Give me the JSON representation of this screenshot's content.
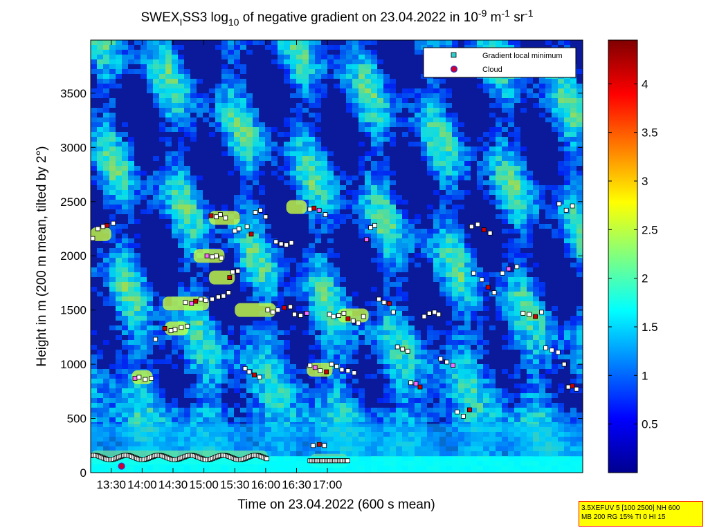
{
  "chart_data": {
    "type": "heatmap",
    "title": {
      "parts": [
        {
          "text": "SWEX"
        },
        {
          "text": "I",
          "sub": true
        },
        {
          "text": "SS3 log"
        },
        {
          "text": "10",
          "sub": true
        },
        {
          "text": " of negative gradient on 23.04.2022 in 10"
        },
        {
          "text": "-9",
          "sup": true
        },
        {
          "text": " m"
        },
        {
          "text": "-1",
          "sup": true
        },
        {
          "text": " sr"
        },
        {
          "text": "-1",
          "sup": true
        }
      ]
    },
    "xlabel": "Time on 23.04.2022 (600 s mean)",
    "ylabel": "Height in m (200 m mean, tilted by 2°)",
    "x_range_min": [
      790,
      1268
    ],
    "x_ticks": [
      {
        "label": "13:30",
        "value": 810
      },
      {
        "label": "14:00",
        "value": 840
      },
      {
        "label": "14:30",
        "value": 870
      },
      {
        "label": "15:00",
        "value": 900
      },
      {
        "label": "15:30",
        "value": 930
      },
      {
        "label": "16:00",
        "value": 960
      },
      {
        "label": "16:30",
        "value": 990
      },
      {
        "label": "17:00",
        "value": 1020
      }
    ],
    "y_range": [
      0,
      3990
    ],
    "y_ticks": [
      0,
      500,
      1000,
      1500,
      2000,
      2500,
      3000,
      3500
    ],
    "colorbar": {
      "range": [
        0,
        4.45
      ],
      "ticks": [
        "0.5",
        "1",
        "1.5",
        "2",
        "2.5",
        "3",
        "3.5",
        "4"
      ],
      "colormap": "jet"
    },
    "legend": {
      "position": "top-right",
      "entries": [
        {
          "label": "Gradient local minimum",
          "marker": "square",
          "color": "#33cccc"
        },
        {
          "label": "Cloud",
          "marker": "circle",
          "color": "#cc0033"
        }
      ]
    },
    "bands": [
      {
        "height_m": 140,
        "start_min": 790,
        "end_min": 962
      },
      {
        "height_m": 880,
        "start_min": 830,
        "end_min": 850
      },
      {
        "height_m": 1330,
        "start_min": 862,
        "end_min": 885
      },
      {
        "height_m": 1560,
        "start_min": 860,
        "end_min": 905
      },
      {
        "height_m": 1500,
        "start_min": 930,
        "end_min": 970
      },
      {
        "height_m": 1800,
        "start_min": 905,
        "end_min": 930
      },
      {
        "height_m": 2000,
        "start_min": 890,
        "end_min": 920
      },
      {
        "height_m": 2200,
        "start_min": 790,
        "end_min": 810
      },
      {
        "height_m": 2350,
        "start_min": 905,
        "end_min": 935
      },
      {
        "height_m": 2450,
        "start_min": 980,
        "end_min": 1000
      },
      {
        "height_m": 1450,
        "start_min": 1030,
        "end_min": 1060
      },
      {
        "height_m": 950,
        "start_min": 1000,
        "end_min": 1025
      },
      {
        "height_m": 110,
        "start_min": 1003,
        "end_min": 1040
      }
    ],
    "minima_points": [
      [
        792,
        2160
      ],
      [
        797,
        2250
      ],
      [
        802,
        2270
      ],
      [
        806,
        2280
      ],
      [
        812,
        2300
      ],
      [
        833,
        870
      ],
      [
        837,
        880
      ],
      [
        843,
        860
      ],
      [
        849,
        870
      ],
      [
        853,
        1230
      ],
      [
        862,
        1330
      ],
      [
        868,
        1310
      ],
      [
        872,
        1320
      ],
      [
        878,
        1340
      ],
      [
        884,
        1350
      ],
      [
        882,
        1570
      ],
      [
        888,
        1560
      ],
      [
        892,
        1580
      ],
      [
        897,
        1600
      ],
      [
        902,
        1590
      ],
      [
        908,
        1600
      ],
      [
        914,
        1620
      ],
      [
        919,
        1630
      ],
      [
        924,
        1660
      ],
      [
        925,
        1800
      ],
      [
        928,
        1850
      ],
      [
        933,
        1860
      ],
      [
        903,
        2000
      ],
      [
        908,
        1990
      ],
      [
        912,
        2000
      ],
      [
        917,
        1980
      ],
      [
        907,
        2370
      ],
      [
        912,
        2360
      ],
      [
        916,
        2380
      ],
      [
        921,
        2350
      ],
      [
        930,
        2230
      ],
      [
        934,
        2250
      ],
      [
        942,
        2270
      ],
      [
        946,
        2200
      ],
      [
        950,
        2400
      ],
      [
        955,
        2420
      ],
      [
        960,
        2360
      ],
      [
        962,
        1500
      ],
      [
        967,
        1480
      ],
      [
        972,
        1500
      ],
      [
        978,
        1520
      ],
      [
        984,
        1530
      ],
      [
        988,
        1460
      ],
      [
        994,
        1450
      ],
      [
        1000,
        1470
      ],
      [
        940,
        960
      ],
      [
        944,
        930
      ],
      [
        949,
        900
      ],
      [
        954,
        880
      ],
      [
        970,
        2130
      ],
      [
        975,
        2110
      ],
      [
        980,
        2100
      ],
      [
        985,
        2120
      ],
      [
        1003,
        2430
      ],
      [
        1007,
        2440
      ],
      [
        1012,
        2420
      ],
      [
        1018,
        2380
      ],
      [
        1022,
        1460
      ],
      [
        1026,
        1440
      ],
      [
        1031,
        1450
      ],
      [
        1036,
        1470
      ],
      [
        1040,
        1420
      ],
      [
        1045,
        1400
      ],
      [
        1050,
        1380
      ],
      [
        1055,
        1440
      ],
      [
        1003,
        990
      ],
      [
        1008,
        970
      ],
      [
        1013,
        940
      ],
      [
        1019,
        930
      ],
      [
        1024,
        1000
      ],
      [
        1029,
        980
      ],
      [
        1034,
        950
      ],
      [
        1040,
        940
      ],
      [
        1046,
        920
      ],
      [
        1006,
        250
      ],
      [
        1012,
        260
      ],
      [
        1017,
        250
      ],
      [
        1058,
        2150
      ],
      [
        1062,
        2260
      ],
      [
        1066,
        2280
      ],
      [
        1070,
        1600
      ],
      [
        1075,
        1570
      ],
      [
        1080,
        1560
      ],
      [
        1084,
        1480
      ],
      [
        1088,
        1160
      ],
      [
        1093,
        1140
      ],
      [
        1098,
        1120
      ],
      [
        1101,
        830
      ],
      [
        1106,
        820
      ],
      [
        1110,
        790
      ],
      [
        1114,
        1440
      ],
      [
        1119,
        1470
      ],
      [
        1124,
        1480
      ],
      [
        1128,
        1460
      ],
      [
        1160,
        2270
      ],
      [
        1166,
        2290
      ],
      [
        1172,
        2240
      ],
      [
        1178,
        2210
      ],
      [
        1190,
        1840
      ],
      [
        1196,
        1880
      ],
      [
        1204,
        1900
      ],
      [
        1210,
        1470
      ],
      [
        1216,
        1460
      ],
      [
        1222,
        1440
      ],
      [
        1228,
        1480
      ],
      [
        1232,
        1150
      ],
      [
        1238,
        1130
      ],
      [
        1244,
        1110
      ],
      [
        1250,
        1000
      ],
      [
        1254,
        790
      ],
      [
        1258,
        800
      ],
      [
        1262,
        770
      ],
      [
        1245,
        2480
      ],
      [
        1252,
        2420
      ],
      [
        1258,
        2460
      ],
      [
        1162,
        1840
      ],
      [
        1170,
        1780
      ],
      [
        1176,
        1710
      ],
      [
        1182,
        1660
      ],
      [
        1130,
        1050
      ],
      [
        1136,
        1020
      ],
      [
        1142,
        990
      ],
      [
        1146,
        560
      ],
      [
        1152,
        520
      ],
      [
        1158,
        580
      ]
    ],
    "cloud_points": [
      [
        820,
        60
      ]
    ],
    "ground_colors": [
      "#00ffff",
      "#00bfff"
    ]
  },
  "info_box": {
    "line1": "3.5XEFUV 5 [100 2500] NH 600",
    "line2": "MB 200 RG 15% TI 0 HI 15"
  }
}
